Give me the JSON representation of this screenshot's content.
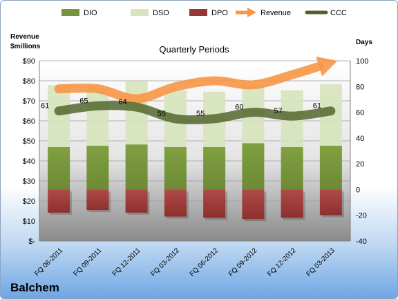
{
  "company": "Balchem",
  "chart_data": {
    "type": "bar",
    "title": "Quarterly Periods",
    "y_left_label_line1": "Revenue",
    "y_left_label_line2": "$millions",
    "y_right_label": "Days",
    "categories": [
      "FQ 06-2011",
      "FQ 09-2011",
      "FQ 12-2011",
      "FQ 03-2012",
      "FQ 06-2012",
      "FQ 09-2012",
      "FQ 12-2012",
      "FQ 03-2013"
    ],
    "left_axis": {
      "min": 0,
      "max": 90,
      "step": 10,
      "tick_labels": [
        "$-",
        "$10",
        "$20",
        "$30",
        "$40",
        "$50",
        "$60",
        "$70",
        "$80",
        "$90"
      ]
    },
    "right_axis": {
      "min": -40,
      "max": 100,
      "step": 20,
      "tick_labels": [
        "-40",
        "-20",
        "0",
        "20",
        "40",
        "60",
        "80",
        "100"
      ]
    },
    "legend_position": "top",
    "legend": [
      {
        "name": "DIO",
        "kind": "box",
        "color": "#77933c"
      },
      {
        "name": "DSO",
        "kind": "box",
        "color": "#d7e4bd"
      },
      {
        "name": "DPO",
        "kind": "box",
        "color": "#953735"
      },
      {
        "name": "Revenue",
        "kind": "arrow",
        "color": "#f79646"
      },
      {
        "name": "CCC",
        "kind": "line",
        "color": "#4f6228"
      }
    ],
    "series": [
      {
        "name": "DIO",
        "axis": "right",
        "values": [
          33,
          34,
          35,
          33,
          33,
          36,
          33,
          34
        ]
      },
      {
        "name": "DSO",
        "axis": "right",
        "values": [
          48,
          45,
          49,
          44,
          43,
          45,
          44,
          48
        ]
      },
      {
        "name": "DPO",
        "axis": "right",
        "values": [
          -18,
          -16,
          -18,
          -21,
          -22,
          -23,
          -22,
          -20
        ]
      },
      {
        "name": "Revenue",
        "axis": "left",
        "values": [
          76,
          76,
          71,
          77,
          80,
          78,
          83,
          89
        ]
      },
      {
        "name": "CCC",
        "axis": "right",
        "values": [
          61,
          65,
          64,
          55,
          55,
          60,
          57,
          61
        ]
      }
    ],
    "ccc_labels": [
      "61",
      "65",
      "64",
      "55",
      "55",
      "60",
      "57",
      "61"
    ],
    "colors": {
      "dio": "#77933c",
      "dso": "#d7e4bd",
      "dpo": "#953735",
      "revenue": "#f79646",
      "ccc": "#4f6228"
    },
    "grid": true
  }
}
